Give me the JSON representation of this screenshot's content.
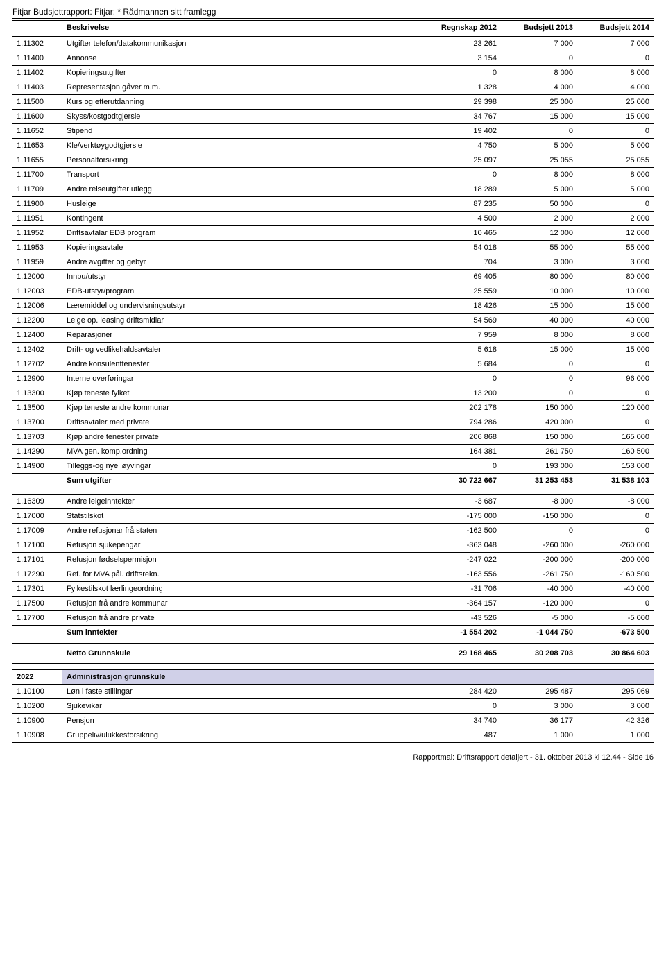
{
  "header": {
    "title": "Fitjar Budsjettrapport: Fitjar: * Rådmannen sitt framlegg"
  },
  "columns": {
    "desc": "Beskrivelse",
    "regnskap": "Regnskap 2012",
    "budsjett2013": "Budsjett 2013",
    "budsjett2014": "Budsjett 2014"
  },
  "rows1": [
    {
      "code": "1.11302",
      "desc": "Utgifter telefon/datakommunikasjon",
      "v1": "23 261",
      "v2": "7 000",
      "v3": "7 000"
    },
    {
      "code": "1.11400",
      "desc": "Annonse",
      "v1": "3 154",
      "v2": "0",
      "v3": "0"
    },
    {
      "code": "1.11402",
      "desc": "Kopieringsutgifter",
      "v1": "0",
      "v2": "8 000",
      "v3": "8 000"
    },
    {
      "code": "1.11403",
      "desc": "Representasjon gåver m.m.",
      "v1": "1 328",
      "v2": "4 000",
      "v3": "4 000"
    },
    {
      "code": "1.11500",
      "desc": "Kurs og etterutdanning",
      "v1": "29 398",
      "v2": "25 000",
      "v3": "25 000"
    },
    {
      "code": "1.11600",
      "desc": "Skyss/kostgodtgjersle",
      "v1": "34 767",
      "v2": "15 000",
      "v3": "15 000"
    },
    {
      "code": "1.11652",
      "desc": "Stipend",
      "v1": "19 402",
      "v2": "0",
      "v3": "0"
    },
    {
      "code": "1.11653",
      "desc": "Kle/verktøygodtgjersle",
      "v1": "4 750",
      "v2": "5 000",
      "v3": "5 000"
    },
    {
      "code": "1.11655",
      "desc": "Personalforsikring",
      "v1": "25 097",
      "v2": "25 055",
      "v3": "25 055"
    },
    {
      "code": "1.11700",
      "desc": "Transport",
      "v1": "0",
      "v2": "8 000",
      "v3": "8 000"
    },
    {
      "code": "1.11709",
      "desc": "Andre reiseutgifter utlegg",
      "v1": "18 289",
      "v2": "5 000",
      "v3": "5 000"
    },
    {
      "code": "1.11900",
      "desc": "Husleige",
      "v1": "87 235",
      "v2": "50 000",
      "v3": "0"
    },
    {
      "code": "1.11951",
      "desc": "Kontingent",
      "v1": "4 500",
      "v2": "2 000",
      "v3": "2 000"
    },
    {
      "code": "1.11952",
      "desc": "Driftsavtalar EDB program",
      "v1": "10 465",
      "v2": "12 000",
      "v3": "12 000"
    },
    {
      "code": "1.11953",
      "desc": "Kopieringsavtale",
      "v1": "54 018",
      "v2": "55 000",
      "v3": "55 000"
    },
    {
      "code": "1.11959",
      "desc": "Andre avgifter og gebyr",
      "v1": "704",
      "v2": "3 000",
      "v3": "3 000"
    },
    {
      "code": "1.12000",
      "desc": "Innbu/utstyr",
      "v1": "69 405",
      "v2": "80 000",
      "v3": "80 000"
    },
    {
      "code": "1.12003",
      "desc": "EDB-utstyr/program",
      "v1": "25 559",
      "v2": "10 000",
      "v3": "10 000"
    },
    {
      "code": "1.12006",
      "desc": "Læremiddel og undervisningsutstyr",
      "v1": "18 426",
      "v2": "15 000",
      "v3": "15 000"
    },
    {
      "code": "1.12200",
      "desc": "Leige  op. leasing  driftsmidlar",
      "v1": "54 569",
      "v2": "40 000",
      "v3": "40 000"
    },
    {
      "code": "1.12400",
      "desc": "Reparasjoner",
      "v1": "7 959",
      "v2": "8 000",
      "v3": "8 000"
    },
    {
      "code": "1.12402",
      "desc": "Drift- og vedlikehaldsavtaler",
      "v1": "5 618",
      "v2": "15 000",
      "v3": "15 000"
    },
    {
      "code": "1.12702",
      "desc": "Andre konsulenttenester",
      "v1": "5 684",
      "v2": "0",
      "v3": "0"
    },
    {
      "code": "1.12900",
      "desc": "Interne overføringar",
      "v1": "0",
      "v2": "0",
      "v3": "96 000"
    },
    {
      "code": "1.13300",
      "desc": "Kjøp teneste fylket",
      "v1": "13 200",
      "v2": "0",
      "v3": "0"
    },
    {
      "code": "1.13500",
      "desc": "Kjøp teneste andre kommunar",
      "v1": "202 178",
      "v2": "150 000",
      "v3": "120 000"
    },
    {
      "code": "1.13700",
      "desc": "Driftsavtaler med private",
      "v1": "794 286",
      "v2": "420 000",
      "v3": "0"
    },
    {
      "code": "1.13703",
      "desc": "Kjøp andre tenester private",
      "v1": "206 868",
      "v2": "150 000",
      "v3": "165 000"
    },
    {
      "code": "1.14290",
      "desc": "MVA gen. komp.ordning",
      "v1": "164 381",
      "v2": "261 750",
      "v3": "160 500"
    },
    {
      "code": "1.14900",
      "desc": "Tilleggs-og nye løyvingar",
      "v1": "0",
      "v2": "193 000",
      "v3": "153 000"
    }
  ],
  "sum_utgifter": {
    "label": "Sum utgifter",
    "v1": "30 722 667",
    "v2": "31 253 453",
    "v3": "31 538 103"
  },
  "rows2": [
    {
      "code": "1.16309",
      "desc": "Andre leigeinntekter",
      "v1": "-3 687",
      "v2": "-8 000",
      "v3": "-8 000"
    },
    {
      "code": "1.17000",
      "desc": "Statstilskot",
      "v1": "-175 000",
      "v2": "-150 000",
      "v3": "0"
    },
    {
      "code": "1.17009",
      "desc": "Andre refusjonar frå staten",
      "v1": "-162 500",
      "v2": "0",
      "v3": "0"
    },
    {
      "code": "1.17100",
      "desc": "Refusjon sjukepengar",
      "v1": "-363 048",
      "v2": "-260 000",
      "v3": "-260 000"
    },
    {
      "code": "1.17101",
      "desc": "Refusjon fødselspermisjon",
      "v1": "-247 022",
      "v2": "-200 000",
      "v3": "-200 000"
    },
    {
      "code": "1.17290",
      "desc": "Ref. for MVA pål. driftsrekn.",
      "v1": "-163 556",
      "v2": "-261 750",
      "v3": "-160 500"
    },
    {
      "code": "1.17301",
      "desc": "Fylkestilskot lærlingeordning",
      "v1": "-31 706",
      "v2": "-40 000",
      "v3": "-40 000"
    },
    {
      "code": "1.17500",
      "desc": "Refusjon frå andre kommunar",
      "v1": "-364 157",
      "v2": "-120 000",
      "v3": "0"
    },
    {
      "code": "1.17700",
      "desc": "Refusjon frå andre  private",
      "v1": "-43 526",
      "v2": "-5 000",
      "v3": "-5 000"
    }
  ],
  "sum_inntekter": {
    "label": "Sum inntekter",
    "v1": "-1 554 202",
    "v2": "-1 044 750",
    "v3": "-673 500"
  },
  "netto": {
    "label": "Netto Grunnskule",
    "v1": "29 168 465",
    "v2": "30 208 703",
    "v3": "30 864 603"
  },
  "section": {
    "code": "2022",
    "desc": "Administrasjon grunnskule"
  },
  "rows3": [
    {
      "code": "1.10100",
      "desc": "Løn i faste stillingar",
      "v1": "284 420",
      "v2": "295 487",
      "v3": "295 069"
    },
    {
      "code": "1.10200",
      "desc": "Sjukevikar",
      "v1": "0",
      "v2": "3 000",
      "v3": "3 000"
    },
    {
      "code": "1.10900",
      "desc": "Pensjon",
      "v1": "34 740",
      "v2": "36 177",
      "v3": "42 326"
    },
    {
      "code": "1.10908",
      "desc": "Gruppeliv/ulukkesforsikring",
      "v1": "487",
      "v2": "1 000",
      "v3": "1 000"
    }
  ],
  "footer": "Rapportmal: Driftsrapport detaljert - 31. oktober 2013 kl 12.44 - Side 16"
}
